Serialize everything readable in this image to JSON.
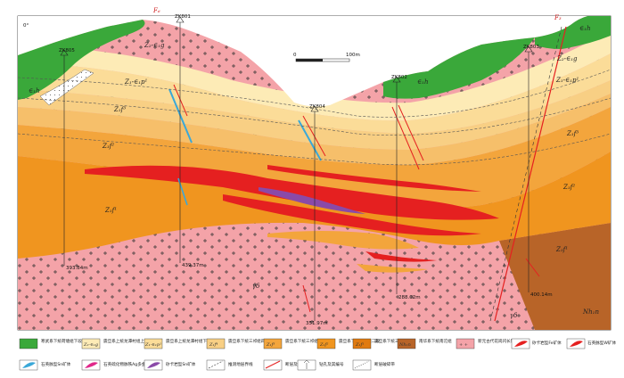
{
  "section": {
    "left_azimuth": "0°",
    "scale_zero": "0",
    "scale_length": "100m",
    "faults": [
      "F₆",
      "F₃"
    ],
    "boreholes": [
      {
        "id": "ZK805",
        "depth": "393.84m"
      },
      {
        "id": "ZK801",
        "depth": "439.37m"
      },
      {
        "id": "ZK804",
        "depth": "351.97m"
      },
      {
        "id": "ZK802",
        "depth": "288.02m"
      },
      {
        "id": "ZK803",
        "depth": "400.14m"
      }
    ],
    "unit_labels": {
      "qs_left": "∈₁h",
      "qs_mid": "∈₁h",
      "qs_right": "∈₁h",
      "z2_top": "Z₂-∈₁g",
      "z1_pz": "Z₁-∈₁p¹",
      "z1_r3": "Z₁f³",
      "z1_r2": "Z₁f²",
      "z1_r1": "Z₁f¹",
      "right_z2": "Z₂-∈₁g",
      "right_p1": "Z₁-∈₁p¹",
      "right_f3": "Z₁f³",
      "right_f2": "Z₁f²",
      "right_f1": "Z₁f¹",
      "gamma": "γδ",
      "gamma_right": "γδ",
      "nh": "Nh₁n"
    }
  },
  "legend": [
    {
      "label": "寒武系下统荷塘组下段",
      "swatch": "∈₁h"
    },
    {
      "label": "震旦系上统龙潭村组上段",
      "swatch": "Z₂-∈₁g"
    },
    {
      "label": "震旦系上统龙潭村组下段",
      "swatch": "Z₁-∈₁p¹"
    },
    {
      "label": "震旦系下统三祁组四段",
      "swatch": "Z₁f⁴"
    },
    {
      "label": "震旦系下统三祁组三段",
      "swatch": "Z₁f³"
    },
    {
      "label": "震旦系下统三祁组二段",
      "swatch": "Z₁f²"
    },
    {
      "label": "震旦系下统三祁组一段",
      "swatch": "Z₁f¹"
    },
    {
      "label": "南华系下统南沱组",
      "swatch": "Nh₁n"
    },
    {
      "label": "新元古代花岗闪长岩",
      "swatch": "+ +"
    },
    {
      "label": "矽卡岩型Fe矿体",
      "swatch": ""
    },
    {
      "label": "石英脉型W矿体",
      "swatch": ""
    },
    {
      "label": "石英脉型Sn矿体",
      "swatch": ""
    },
    {
      "label": "石英硫化物脉铁Ag多金属矿体",
      "swatch": ""
    },
    {
      "label": "矽卡岩型Sn矿体",
      "swatch": ""
    },
    {
      "label": "推测地层界线",
      "swatch": ""
    },
    {
      "label": "断层及其编号",
      "swatch": ""
    },
    {
      "label": "钻孔及其编号",
      "swatch": "ZK60"
    },
    {
      "label": "断层破碎带",
      "swatch": ""
    }
  ],
  "colors": {
    "green": "#3aa83a",
    "cream": "#fce8a8",
    "lightyellow": "#fbd88a",
    "tan": "#f6c77a",
    "orange": "#f3a23a",
    "darkorange": "#ee8a1c",
    "pink": "#f4a3a8",
    "brown": "#b86428",
    "red": "#e52020",
    "purple": "#8a4aa8",
    "blue": "#3aa8d8",
    "magenta": "#e0288a"
  }
}
